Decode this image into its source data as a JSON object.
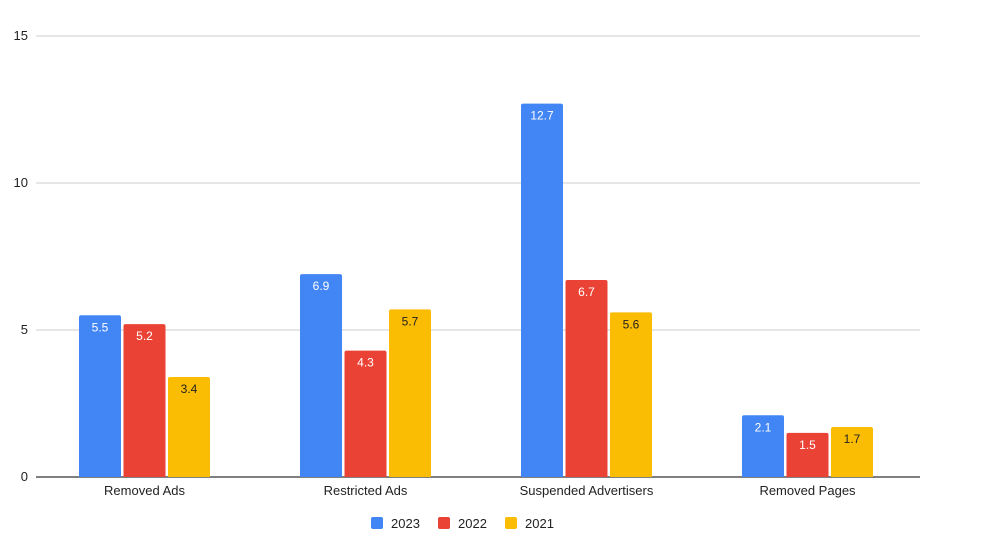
{
  "chart_data": {
    "type": "bar",
    "categories": [
      "Removed Ads",
      "Restricted Ads",
      "Suspended Advertisers",
      "Removed Pages"
    ],
    "series": [
      {
        "name": "2023",
        "color": "#4285F4",
        "label_color": "#ffffff",
        "values": [
          5.5,
          6.9,
          12.7,
          2.1
        ]
      },
      {
        "name": "2022",
        "color": "#EA4335",
        "label_color": "#ffffff",
        "values": [
          5.2,
          4.3,
          6.7,
          1.5
        ]
      },
      {
        "name": "2021",
        "color": "#FBBC04",
        "label_color": "#222222",
        "values": [
          3.4,
          5.7,
          5.6,
          1.7
        ]
      }
    ],
    "yticks": [
      0,
      5,
      10,
      15
    ],
    "ylim": [
      0,
      15
    ],
    "grid": true,
    "legend_position": "bottom",
    "title": "",
    "xlabel": "",
    "ylabel": ""
  }
}
